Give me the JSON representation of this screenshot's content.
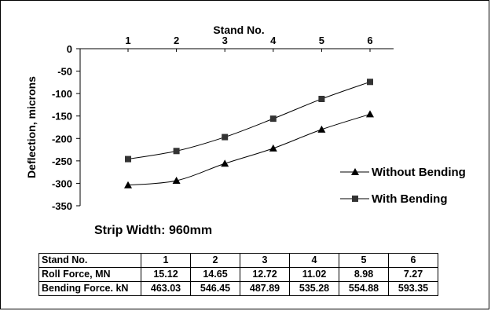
{
  "chart_data": {
    "type": "line",
    "title": "",
    "xlabel": "Stand No.",
    "ylabel": "Deflection, microns",
    "x": [
      1,
      2,
      3,
      4,
      5,
      6
    ],
    "x_tick_labels": [
      "1",
      "2",
      "3",
      "4",
      "5",
      "6"
    ],
    "x_axis_position": "top",
    "ylim": [
      -350,
      0
    ],
    "y_ticks": [
      0,
      -50,
      -100,
      -150,
      -200,
      -250,
      -300,
      -350
    ],
    "y_tick_labels": [
      "0",
      "-50",
      "-100",
      "-150",
      "-200",
      "-250",
      "-300",
      "-350"
    ],
    "grid": false,
    "legend_position": "right",
    "series": [
      {
        "name": "Without Bending",
        "marker": "triangle",
        "values": [
          -304,
          -294,
          -256,
          -222,
          -180,
          -146
        ]
      },
      {
        "name": "With Bending",
        "marker": "square",
        "values": [
          -246,
          -228,
          -197,
          -156,
          -112,
          -74
        ]
      }
    ],
    "annotation": "Strip Width: 960mm",
    "table": {
      "header": [
        "Stand No.",
        "1",
        "2",
        "3",
        "4",
        "5",
        "6"
      ],
      "rows": [
        [
          "Roll Force, MN",
          "15.12",
          "14.65",
          "12.72",
          "11.02",
          "8.98",
          "7.27"
        ],
        [
          "Bending Force. kN",
          "463.03",
          "546.45",
          "487.89",
          "535.28",
          "554.88",
          "593.35"
        ]
      ]
    }
  }
}
